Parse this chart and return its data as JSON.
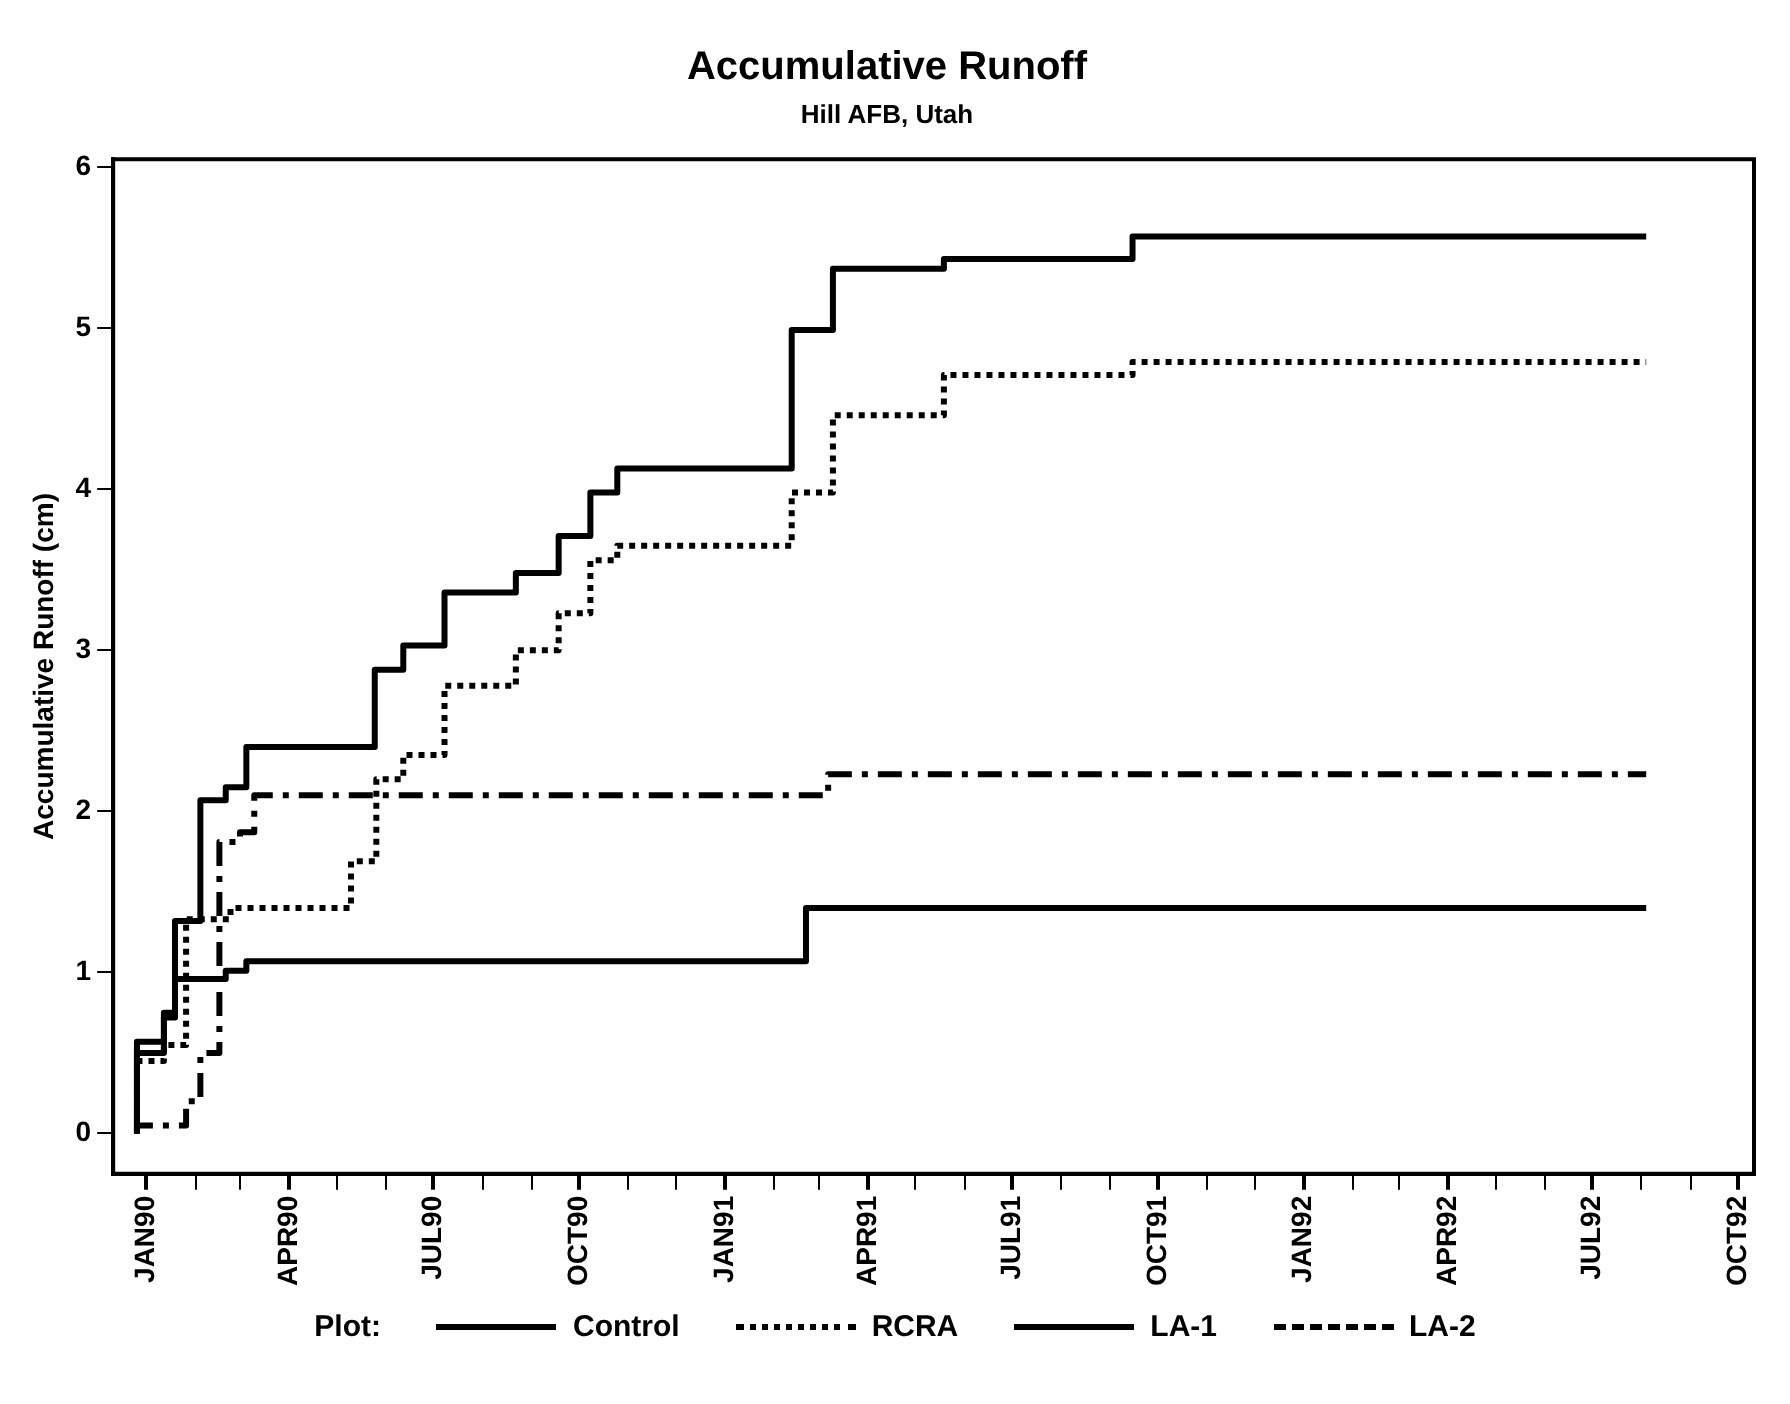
{
  "chart_data": {
    "type": "step",
    "title": "Accumulative Runoff",
    "subtitle": "Hill AFB, Utah",
    "ylabel": "Accumulative Runoff (cm)",
    "legend_title": "Plot:",
    "legend": "bottom",
    "grid": false,
    "marker": "none",
    "xlim": [
      "1989-12-11",
      "1992-10-11"
    ],
    "xticks": [
      {
        "value": "1990-01",
        "label": "JAN90"
      },
      {
        "value": "1990-02",
        "label": null
      },
      {
        "value": "1990-03",
        "label": null
      },
      {
        "value": "1990-04",
        "label": "APR90"
      },
      {
        "value": "1990-05",
        "label": null
      },
      {
        "value": "1990-06",
        "label": null
      },
      {
        "value": "1990-07",
        "label": "JUL90"
      },
      {
        "value": "1990-08",
        "label": null
      },
      {
        "value": "1990-09",
        "label": null
      },
      {
        "value": "1990-10",
        "label": "OCT90"
      },
      {
        "value": "1990-11",
        "label": null
      },
      {
        "value": "1990-12",
        "label": null
      },
      {
        "value": "1991-01",
        "label": "JAN91"
      },
      {
        "value": "1991-02",
        "label": null
      },
      {
        "value": "1991-03",
        "label": null
      },
      {
        "value": "1991-04",
        "label": "APR91"
      },
      {
        "value": "1991-05",
        "label": null
      },
      {
        "value": "1991-06",
        "label": null
      },
      {
        "value": "1991-07",
        "label": "JUL91"
      },
      {
        "value": "1991-08",
        "label": null
      },
      {
        "value": "1991-09",
        "label": null
      },
      {
        "value": "1991-10",
        "label": "OCT91"
      },
      {
        "value": "1991-11",
        "label": null
      },
      {
        "value": "1991-12",
        "label": null
      },
      {
        "value": "1992-01",
        "label": "JAN92"
      },
      {
        "value": "1992-02",
        "label": null
      },
      {
        "value": "1992-03",
        "label": null
      },
      {
        "value": "1992-04",
        "label": "APR92"
      },
      {
        "value": "1992-05",
        "label": null
      },
      {
        "value": "1992-06",
        "label": null
      },
      {
        "value": "1992-07",
        "label": "JUL92"
      },
      {
        "value": "1992-08",
        "label": null
      },
      {
        "value": "1992-09",
        "label": null
      },
      {
        "value": "1992-10",
        "label": "OCT92"
      }
    ],
    "ylim": [
      -0.25,
      6.05
    ],
    "yticks": [
      0,
      1,
      2,
      3,
      4,
      5,
      6
    ],
    "series": [
      {
        "name": "Control",
        "color": "#000000",
        "line_style": "solid",
        "x": [
          "1989-12-26",
          "1990-01-12",
          "1990-01-19",
          "1990-02-04",
          "1990-02-20",
          "1990-03-05",
          "1990-05-25",
          "1990-06-12",
          "1990-07-08",
          "1990-08-22",
          "1990-09-18",
          "1990-10-08",
          "1990-10-25",
          "1991-02-12",
          "1991-03-10",
          "1991-05-19",
          "1991-09-15",
          "1992-02-16",
          "1992-08-04"
        ],
        "values": [
          0,
          0.57,
          0.75,
          1.32,
          2.07,
          2.15,
          2.4,
          2.88,
          3.03,
          3.36,
          3.48,
          3.71,
          3.98,
          4.13,
          4.99,
          5.37,
          5.43,
          5.57,
          5.57
        ]
      },
      {
        "name": "RCRA",
        "color": "#000000",
        "line_style": "dotted",
        "x": [
          "1989-12-26",
          "1990-01-12",
          "1990-01-26",
          "1990-02-23",
          "1990-05-10",
          "1990-05-26",
          "1990-06-12",
          "1990-07-08",
          "1990-08-22",
          "1990-09-18",
          "1990-10-08",
          "1990-10-25",
          "1991-02-12",
          "1991-03-10",
          "1991-05-19",
          "1991-09-15",
          "1992-02-16",
          "1992-08-04"
        ],
        "values": [
          0,
          0.45,
          0.55,
          1.33,
          1.4,
          1.69,
          2.2,
          2.35,
          2.78,
          3.0,
          3.23,
          3.56,
          3.65,
          3.98,
          4.46,
          4.71,
          4.79,
          4.79
        ]
      },
      {
        "name": "LA-1",
        "color": "#000000",
        "line_style": "solid",
        "x": [
          "1989-12-26",
          "1990-01-12",
          "1990-01-19",
          "1990-02-20",
          "1990-03-05",
          "1991-02-21",
          "1991-03-10",
          "1992-08-04"
        ],
        "values": [
          0,
          0.5,
          0.72,
          0.96,
          1.01,
          1.07,
          1.4,
          1.4
        ]
      },
      {
        "name": "LA-2",
        "color": "#000000",
        "line_style": "dashed",
        "x": [
          "1989-12-26",
          "1990-01-26",
          "1990-02-04",
          "1990-02-16",
          "1990-03-01",
          "1990-03-10",
          "1991-03-07",
          "1992-02-11",
          "1992-08-04"
        ],
        "values": [
          0,
          0.05,
          0.2,
          0.5,
          1.81,
          1.87,
          2.1,
          2.23,
          2.23
        ]
      }
    ]
  }
}
